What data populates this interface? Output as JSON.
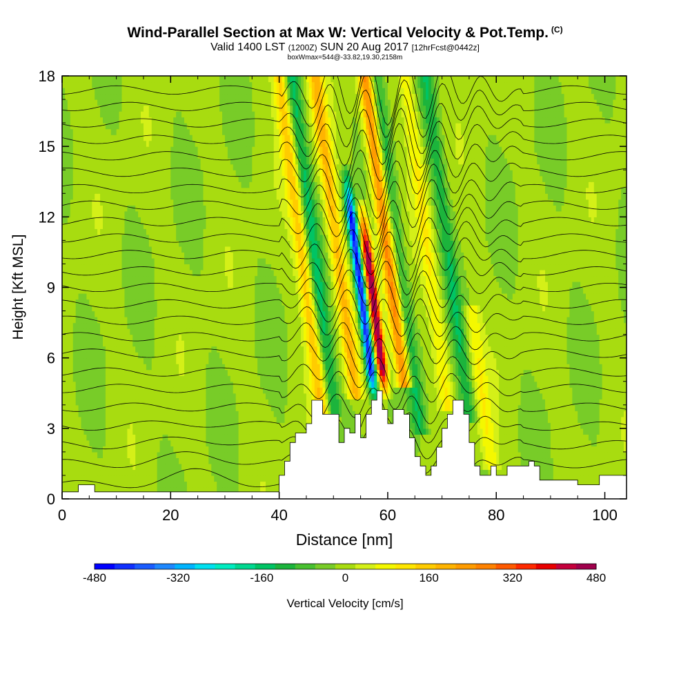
{
  "title": {
    "main": "Wind-Parallel Section at Max W: Vertical Velocity & Pot.Temp.",
    "copyright": "(C)",
    "valid_prefix": "Valid 1400 LST",
    "valid_utc": "(1200Z)",
    "valid_date": "SUN 20 Aug 2017",
    "forecast": "[12hrFcst@0442z]",
    "box": "boxWmax=544@-33.82,19.30,2158m"
  },
  "chart_data": {
    "type": "heatmap",
    "xlabel": "Distance [nm]",
    "ylabel": "Height [Kft MSL]",
    "xlim": [
      0,
      104
    ],
    "ylim": [
      0,
      18
    ],
    "xticks": [
      "0",
      "20",
      "40",
      "60",
      "80",
      "100"
    ],
    "yticks": [
      "0",
      "3",
      "6",
      "9",
      "12",
      "15",
      "18"
    ],
    "colorbar": {
      "label": "Vertical Velocity [cm/s]",
      "ticks": [
        "-480",
        "-320",
        "-160",
        "0",
        "160",
        "320",
        "480"
      ],
      "range": [
        -480,
        480
      ],
      "step": 40,
      "colors": [
        "#0000ff",
        "#1030ff",
        "#1a5cff",
        "#1e88ff",
        "#00b4ff",
        "#00e0f0",
        "#00ecc0",
        "#00d890",
        "#00c464",
        "#1cb43c",
        "#48c030",
        "#78cc28",
        "#a8dc10",
        "#d4f018",
        "#f4f800",
        "#ffe600",
        "#ffcc00",
        "#ffb400",
        "#ff9c00",
        "#ff8200",
        "#ff5a00",
        "#ff2a00",
        "#e80000",
        "#c4003c",
        "#a0004c"
      ]
    },
    "vertical_velocity_features": [
      {
        "x": 48,
        "y_range": [
          3.6,
          18
        ],
        "w": 180,
        "kind": "updraft"
      },
      {
        "x": 50,
        "y_range": [
          3.8,
          18
        ],
        "w": -140,
        "kind": "downdraft"
      },
      {
        "x": 54,
        "y_range": [
          4.5,
          18
        ],
        "w": 200,
        "kind": "updraft"
      },
      {
        "x": 57.5,
        "y_range": [
          4.4,
          14
        ],
        "w": -480,
        "kind": "downdraft core"
      },
      {
        "x": 59.5,
        "y_range": [
          4.6,
          12.5
        ],
        "w": 544,
        "kind": "updraft core"
      },
      {
        "x": 63,
        "y_range": [
          5,
          18
        ],
        "w": 300,
        "kind": "updraft"
      },
      {
        "x": 66,
        "y_range": [
          3,
          18
        ],
        "w": -120,
        "kind": "downdraft"
      },
      {
        "x": 71,
        "y_range": [
          4,
          18
        ],
        "w": 110,
        "kind": "updraft"
      },
      {
        "x": 75,
        "y_range": [
          3.5,
          18
        ],
        "w": -110,
        "kind": "downdraft"
      },
      {
        "x": 79,
        "y_range": [
          1.5,
          8
        ],
        "w": 100,
        "kind": "updraft"
      }
    ],
    "terrain_kft": [
      [
        0,
        0.3
      ],
      [
        3,
        0.3
      ],
      [
        3,
        0.6
      ],
      [
        6,
        0.6
      ],
      [
        6,
        0.3
      ],
      [
        40,
        0.3
      ],
      [
        40,
        1.0
      ],
      [
        41,
        1.0
      ],
      [
        41,
        1.6
      ],
      [
        42,
        1.6
      ],
      [
        42,
        2.4
      ],
      [
        43,
        2.4
      ],
      [
        43,
        2.8
      ],
      [
        45,
        2.8
      ],
      [
        45,
        3.2
      ],
      [
        46,
        3.2
      ],
      [
        46,
        4.2
      ],
      [
        48,
        4.2
      ],
      [
        48,
        3.6
      ],
      [
        51,
        3.6
      ],
      [
        51,
        2.4
      ],
      [
        52,
        2.4
      ],
      [
        52,
        3.0
      ],
      [
        53,
        3.0
      ],
      [
        53,
        2.8
      ],
      [
        54,
        2.8
      ],
      [
        54,
        3.6
      ],
      [
        55,
        3.6
      ],
      [
        55,
        2.6
      ],
      [
        56,
        2.6
      ],
      [
        56,
        3.6
      ],
      [
        57,
        3.6
      ],
      [
        57,
        4.2
      ],
      [
        58,
        4.2
      ],
      [
        58,
        4.6
      ],
      [
        59,
        4.6
      ],
      [
        59,
        3.8
      ],
      [
        60,
        3.8
      ],
      [
        60,
        3.2
      ],
      [
        61,
        3.2
      ],
      [
        61,
        3.8
      ],
      [
        63,
        3.8
      ],
      [
        63,
        3.6
      ],
      [
        64,
        3.6
      ],
      [
        64,
        2.6
      ],
      [
        65,
        2.6
      ],
      [
        65,
        1.8
      ],
      [
        66,
        1.8
      ],
      [
        66,
        1.4
      ],
      [
        67,
        1.4
      ],
      [
        67,
        1.0
      ],
      [
        68,
        1.0
      ],
      [
        68,
        1.4
      ],
      [
        69,
        1.4
      ],
      [
        69,
        2.2
      ],
      [
        70,
        2.2
      ],
      [
        70,
        3.0
      ],
      [
        71,
        3.0
      ],
      [
        71,
        3.6
      ],
      [
        72,
        3.6
      ],
      [
        72,
        4.2
      ],
      [
        74,
        4.2
      ],
      [
        74,
        3.6
      ],
      [
        75,
        3.6
      ],
      [
        75,
        2.4
      ],
      [
        76,
        2.4
      ],
      [
        76,
        1.4
      ],
      [
        77,
        1.4
      ],
      [
        77,
        1.0
      ],
      [
        79,
        1.0
      ],
      [
        79,
        1.4
      ],
      [
        80,
        1.4
      ],
      [
        80,
        1.0
      ],
      [
        82,
        1.0
      ],
      [
        82,
        1.4
      ],
      [
        86,
        1.4
      ],
      [
        86,
        1.6
      ],
      [
        87,
        1.6
      ],
      [
        87,
        1.4
      ],
      [
        88,
        1.4
      ],
      [
        88,
        0.8
      ],
      [
        95,
        0.8
      ],
      [
        95,
        0.6
      ],
      [
        99,
        0.6
      ],
      [
        99,
        1.0
      ],
      [
        104,
        1.0
      ]
    ],
    "isentrope_base_kft": [
      0.6,
      1.5,
      2.3,
      3.1,
      3.9,
      4.7,
      5.4,
      6.2,
      6.9,
      7.6,
      8.3,
      9.0,
      9.7,
      10.4,
      11.1,
      11.8,
      12.5,
      13.2,
      13.9,
      14.6,
      15.3,
      16.0,
      16.7,
      17.4
    ]
  }
}
